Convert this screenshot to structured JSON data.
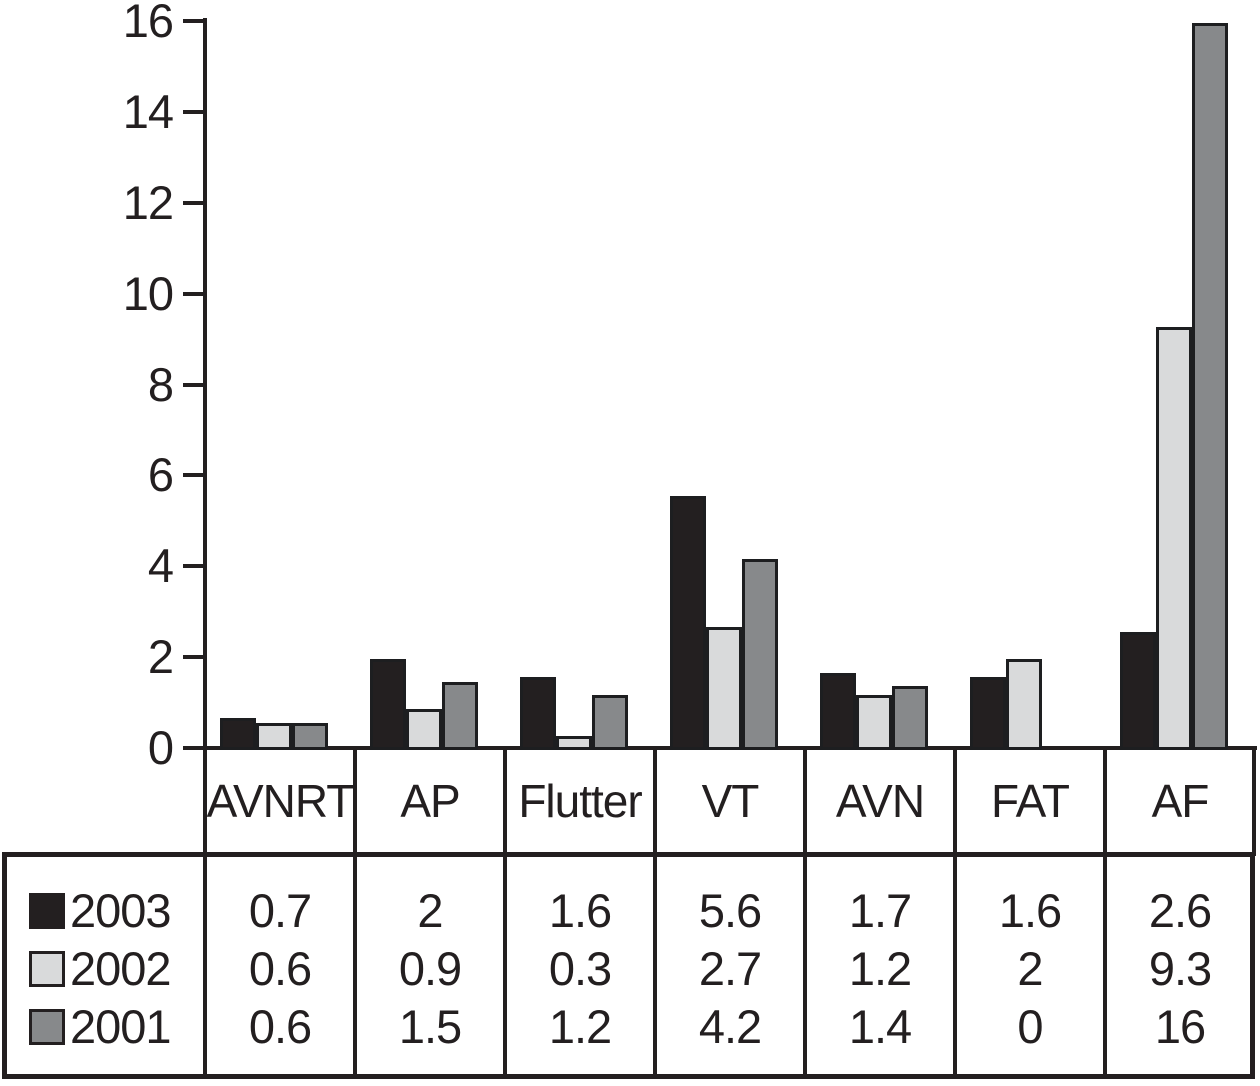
{
  "colors": {
    "ink": "#231f20",
    "bar_border": "#1d1e20",
    "background": "#ffffff",
    "series_2003": "#231f20",
    "series_2002": "#d9dadb",
    "series_2001": "#87898b"
  },
  "chart_data": {
    "type": "bar",
    "title": "",
    "xlabel": "",
    "ylabel": "",
    "categories": [
      "AVNRT",
      "AP",
      "Flutter",
      "VT",
      "AVN",
      "FAT",
      "AF"
    ],
    "series": [
      {
        "name": "2003",
        "color": "#231f20",
        "values": [
          0.7,
          2,
          1.6,
          5.6,
          1.7,
          1.6,
          2.6
        ]
      },
      {
        "name": "2002",
        "color": "#d9dadb",
        "values": [
          0.6,
          0.9,
          0.3,
          2.7,
          1.2,
          2,
          9.3
        ]
      },
      {
        "name": "2001",
        "color": "#87898b",
        "values": [
          0.6,
          1.5,
          1.2,
          4.2,
          1.4,
          0,
          16
        ]
      }
    ],
    "ylim": [
      0,
      16
    ],
    "ytick_interval": 2,
    "ytick_labels": [
      "0",
      "2",
      "4",
      "6",
      "8",
      "10",
      "12",
      "14",
      "16"
    ],
    "grid": false,
    "legend_position": "bottom-left-table",
    "data_table_shown": true,
    "table_cell_values": [
      [
        "0.7",
        "2",
        "1.6",
        "5.6",
        "1.7",
        "1.6",
        "2.6"
      ],
      [
        "0.6",
        "0.9",
        "0.3",
        "2.7",
        "1.2",
        "2",
        "9.3"
      ],
      [
        "0.6",
        "1.5",
        "1.2",
        "4.2",
        "1.4",
        "0",
        "16"
      ]
    ]
  }
}
